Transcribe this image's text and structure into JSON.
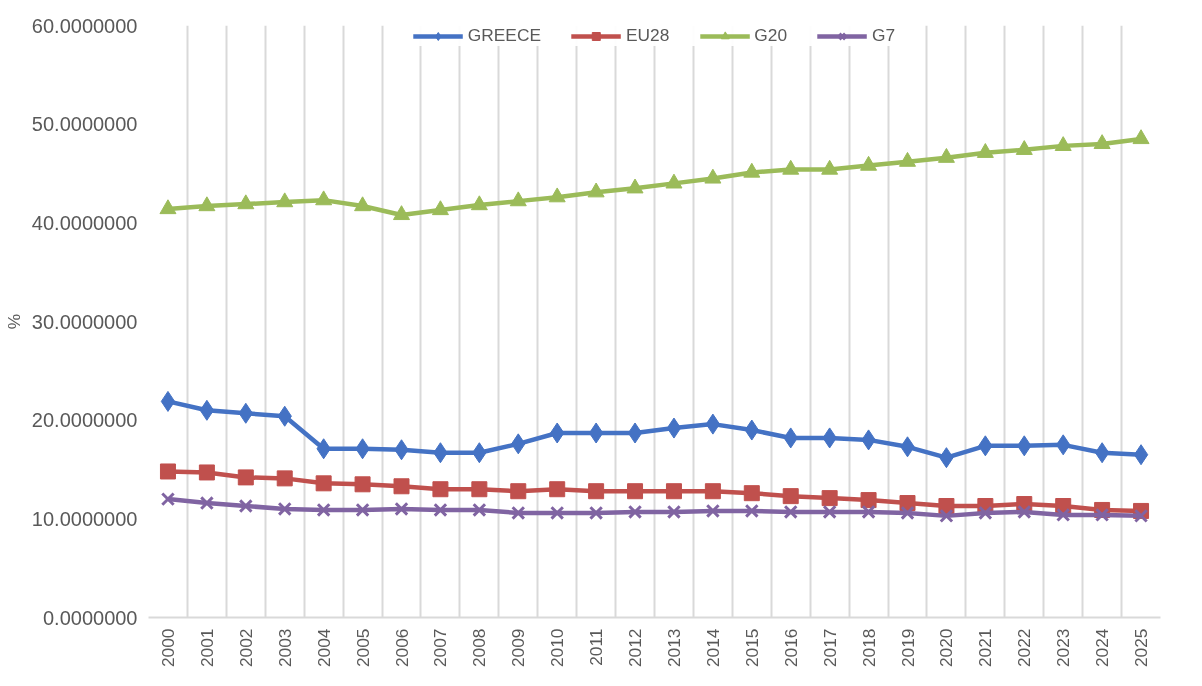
{
  "chart_data": {
    "type": "line",
    "ylabel": "%",
    "categories": [
      "2000",
      "2001",
      "2002",
      "2003",
      "2004",
      "2005",
      "2006",
      "2007",
      "2008",
      "2009",
      "2010",
      "2011",
      "2012",
      "2013",
      "2014",
      "2015",
      "2016",
      "2017",
      "2018",
      "2019",
      "2020",
      "2021",
      "2022",
      "2023",
      "2024",
      "2025"
    ],
    "ylim": [
      0,
      60
    ],
    "yticks": [
      {
        "value": 0,
        "label": "0.0000000"
      },
      {
        "value": 10,
        "label": "10.0000000"
      },
      {
        "value": 20,
        "label": "20.0000000"
      },
      {
        "value": 30,
        "label": "30.0000000"
      },
      {
        "value": 40,
        "label": "40.0000000"
      },
      {
        "value": 50,
        "label": "50.0000000"
      },
      {
        "value": 60,
        "label": "60.0000000"
      }
    ],
    "grid": "x",
    "legend": "top",
    "line_style": "solid",
    "series": [
      {
        "name": "GREECE",
        "color": "#4472c4",
        "marker": "diamond",
        "values": [
          21.9,
          21.0,
          20.7,
          20.4,
          17.1,
          17.1,
          17.0,
          16.7,
          16.7,
          17.6,
          18.7,
          18.7,
          18.7,
          19.2,
          19.6,
          19.0,
          18.2,
          18.2,
          18.0,
          17.3,
          16.2,
          17.4,
          17.4,
          17.5,
          16.7,
          16.5
        ]
      },
      {
        "name": "EU28",
        "color": "#c0504d",
        "marker": "square",
        "values": [
          14.8,
          14.7,
          14.2,
          14.1,
          13.6,
          13.5,
          13.3,
          13.0,
          13.0,
          12.8,
          13.0,
          12.8,
          12.8,
          12.8,
          12.8,
          12.6,
          12.3,
          12.1,
          11.9,
          11.6,
          11.3,
          11.3,
          11.5,
          11.3,
          10.9,
          10.8
        ]
      },
      {
        "name": "G20",
        "color": "#9bbb59",
        "marker": "triangle",
        "values": [
          41.4,
          41.7,
          41.9,
          42.1,
          42.3,
          41.7,
          40.8,
          41.3,
          41.8,
          42.2,
          42.6,
          43.1,
          43.5,
          44.0,
          44.5,
          45.1,
          45.4,
          45.4,
          45.8,
          46.2,
          46.6,
          47.1,
          47.4,
          47.8,
          48.0,
          48.5
        ]
      },
      {
        "name": "G7",
        "color": "#8064a2",
        "marker": "cross",
        "values": [
          12.0,
          11.6,
          11.3,
          11.0,
          10.9,
          10.9,
          11.0,
          10.9,
          10.9,
          10.6,
          10.6,
          10.6,
          10.7,
          10.7,
          10.8,
          10.8,
          10.7,
          10.7,
          10.7,
          10.6,
          10.3,
          10.6,
          10.7,
          10.4,
          10.4,
          10.3
        ]
      }
    ]
  }
}
